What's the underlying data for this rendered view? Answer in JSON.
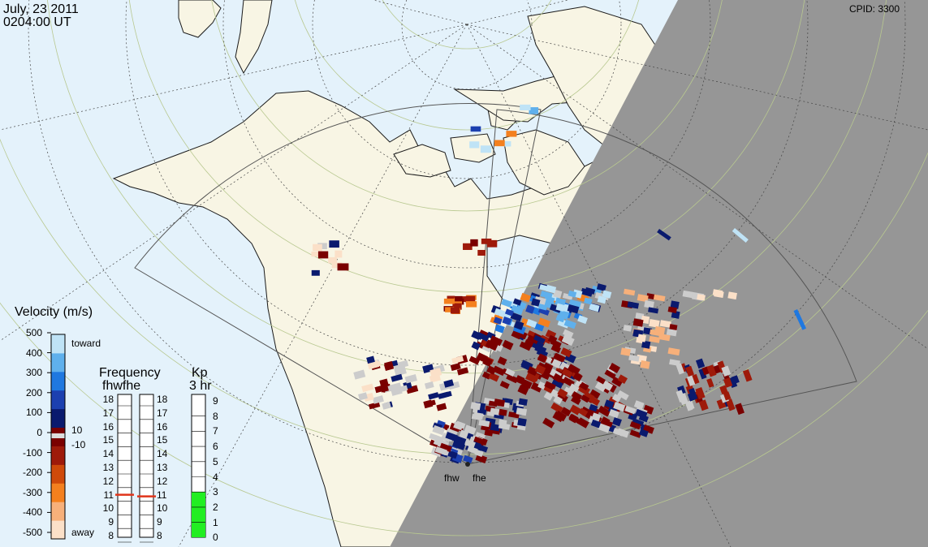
{
  "header": {
    "date": "July, 23 2011",
    "time": "0204:00 UT",
    "cpid": "CPID:  3300"
  },
  "radars": {
    "west": "fhw",
    "east": "fhe"
  },
  "velocity_legend": {
    "title": "Velocity (m/s)",
    "ticks": [
      "500",
      "400",
      "300",
      "200",
      "100",
      "0",
      "-100",
      "-200",
      "-300",
      "-400",
      "-500"
    ],
    "toward_label": "toward",
    "away_label": "away",
    "pos_threshold": "10",
    "neg_threshold": "-10",
    "colors": [
      "#fbe0c8",
      "#f7b07a",
      "#f4801e",
      "#cf4a0a",
      "#9e1a0a",
      "#7a0000",
      "#0a1a6e",
      "#1c40b0",
      "#1f78e0",
      "#5fb0ec",
      "#bfe3f6"
    ]
  },
  "frequency_legend": {
    "title": "Frequency",
    "subtitle": "fhwfhe",
    "scale": [
      "18",
      "17",
      "16",
      "15",
      "14",
      "13",
      "12",
      "11",
      "10",
      "9",
      "8"
    ],
    "fhw_mhz": 11,
    "fhe_mhz": 11,
    "marker_color": "#e0341a"
  },
  "kp_legend": {
    "title": "Kp",
    "subtitle": "3 hr",
    "scale": [
      "9",
      "8",
      "7",
      "6",
      "5",
      "4",
      "3",
      "2",
      "1",
      "0"
    ],
    "value": 3,
    "fill_color": "#22ee22"
  },
  "map": {
    "ocean_color": "#e4f2fb",
    "land_color": "#f8f5e4",
    "night_color": "#969696",
    "ground_scatter_color": "#cccccc",
    "grid_color": "#b8c890"
  }
}
